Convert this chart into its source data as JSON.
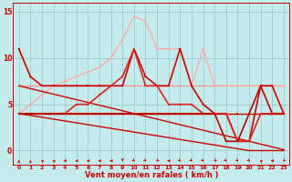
{
  "xlabel": "Vent moyen/en rafales ( km/h )",
  "xlim": [
    -0.5,
    23.5
  ],
  "ylim": [
    -1.5,
    16
  ],
  "yticks": [
    0,
    5,
    10,
    15
  ],
  "xticks": [
    0,
    1,
    2,
    3,
    4,
    5,
    6,
    7,
    8,
    9,
    10,
    11,
    12,
    13,
    14,
    15,
    16,
    17,
    18,
    19,
    20,
    21,
    22,
    23
  ],
  "bg_color": "#c5ecec",
  "grid_color": "#9ecece",
  "series": [
    {
      "x": [
        0,
        1,
        2,
        3,
        4,
        5,
        6,
        7,
        8,
        9,
        10,
        11,
        12,
        13,
        14,
        15,
        16,
        17,
        18,
        19,
        20,
        21,
        22,
        23
      ],
      "y": [
        7,
        7,
        7,
        7,
        7,
        7,
        7,
        7,
        7,
        7,
        7,
        7,
        7,
        7,
        7,
        7,
        7,
        7,
        7,
        7,
        7,
        7,
        7,
        7
      ],
      "color": "#ff9999",
      "alpha": 1.0,
      "lw": 1.0,
      "marker": "s",
      "ms": 2.0
    },
    {
      "x": [
        0,
        1,
        2,
        3,
        4,
        5,
        6,
        7,
        8,
        9,
        10,
        11,
        12,
        13,
        14,
        15,
        16,
        17,
        18,
        19,
        20,
        21,
        22,
        23
      ],
      "y": [
        4,
        5,
        6,
        7,
        7.5,
        8,
        8.5,
        9,
        10,
        12,
        14.5,
        14,
        11,
        11,
        11,
        7,
        11,
        7,
        7,
        7,
        7,
        7,
        7,
        7
      ],
      "color": "#ffaaaa",
      "alpha": 1.0,
      "lw": 1.0,
      "marker": "s",
      "ms": 2.0
    },
    {
      "x": [
        0,
        1,
        2,
        3,
        4,
        5,
        6,
        7,
        8,
        9,
        10,
        11,
        12,
        13,
        14,
        15,
        16,
        17,
        18,
        19,
        20,
        21,
        22,
        23
      ],
      "y": [
        4,
        4,
        4,
        4,
        4,
        4,
        4,
        4,
        4,
        4,
        4,
        4,
        4,
        4,
        4,
        4,
        4,
        4,
        4,
        4,
        4,
        4,
        4,
        4
      ],
      "color": "#cc0000",
      "alpha": 1.0,
      "lw": 1.0,
      "marker": "s",
      "ms": 2.0
    },
    {
      "x": [
        0,
        1,
        2,
        3,
        4,
        5,
        6,
        7,
        8,
        9,
        10,
        11,
        12,
        13,
        14,
        15,
        16,
        17,
        18,
        19,
        20,
        21,
        22,
        23
      ],
      "y": [
        7,
        6.7,
        6.4,
        6.1,
        5.8,
        5.5,
        5.2,
        4.9,
        4.6,
        4.3,
        4.0,
        3.7,
        3.4,
        3.1,
        2.8,
        2.5,
        2.2,
        1.9,
        1.6,
        1.3,
        1.0,
        0.7,
        0.4,
        0.1
      ],
      "color": "#cc0000",
      "alpha": 1.0,
      "lw": 1.0,
      "marker": null,
      "ms": 0
    },
    {
      "x": [
        0,
        1,
        2,
        3,
        4,
        5,
        6,
        7,
        8,
        9,
        10,
        11,
        12,
        13,
        14,
        15,
        16,
        17,
        18,
        19,
        20,
        21,
        22,
        23
      ],
      "y": [
        4,
        3.8,
        3.6,
        3.4,
        3.2,
        3.0,
        2.8,
        2.6,
        2.4,
        2.2,
        2.0,
        1.8,
        1.6,
        1.4,
        1.2,
        1.0,
        0.8,
        0.6,
        0.4,
        0.2,
        0.0,
        0.0,
        0.0,
        0.0
      ],
      "color": "#cc0000",
      "alpha": 1.0,
      "lw": 1.0,
      "marker": null,
      "ms": 0
    },
    {
      "x": [
        0,
        1,
        2,
        3,
        4,
        5,
        6,
        7,
        8,
        9,
        10,
        11,
        12,
        13,
        14,
        15,
        16,
        17,
        18,
        19,
        20,
        21,
        22,
        23
      ],
      "y": [
        11,
        8,
        7,
        7,
        7,
        7,
        7,
        7,
        7,
        7,
        11,
        8,
        7,
        7,
        11,
        7,
        5,
        4,
        4,
        1,
        1,
        7,
        7,
        4
      ],
      "color": "#cc0000",
      "alpha": 1.0,
      "lw": 1.2,
      "marker": "s",
      "ms": 2.0
    },
    {
      "x": [
        0,
        1,
        2,
        3,
        4,
        5,
        6,
        7,
        8,
        9,
        10,
        11,
        12,
        13,
        14,
        15,
        16,
        17,
        18,
        19,
        20,
        21,
        22,
        23
      ],
      "y": [
        4,
        4,
        4,
        4,
        4,
        5,
        5,
        6,
        7,
        8,
        11,
        7,
        7,
        5,
        5,
        5,
        4,
        4,
        4,
        1,
        1,
        4,
        4,
        4
      ],
      "color": "#dd2222",
      "alpha": 1.0,
      "lw": 1.2,
      "marker": "s",
      "ms": 2.0
    },
    {
      "x": [
        0,
        1,
        2,
        3,
        4,
        5,
        6,
        7,
        8,
        9,
        10,
        11,
        12,
        13,
        14,
        15,
        16,
        17,
        18,
        19,
        20,
        21,
        22,
        23
      ],
      "y": [
        4,
        4,
        4,
        4,
        4,
        4,
        4,
        4,
        4,
        4,
        4,
        4,
        4,
        4,
        4,
        4,
        4,
        4,
        1,
        1,
        4,
        7,
        4,
        4
      ],
      "color": "#bb0000",
      "alpha": 1.0,
      "lw": 1.2,
      "marker": "s",
      "ms": 2.0
    }
  ],
  "arrows": [
    180,
    180,
    225,
    225,
    270,
    270,
    270,
    270,
    270,
    0,
    45,
    45,
    315,
    270,
    45,
    45,
    45,
    315,
    45,
    45,
    45,
    225,
    270,
    315
  ]
}
